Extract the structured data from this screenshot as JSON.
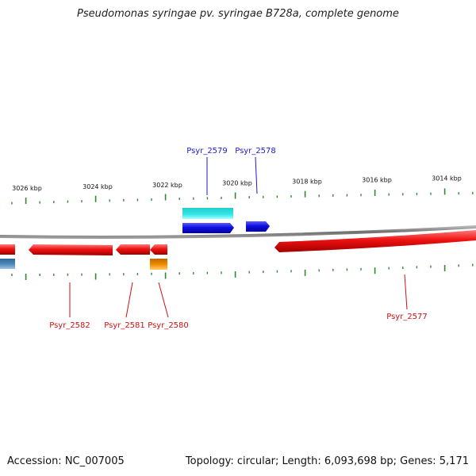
{
  "title": "Pseudomonas syringae pv. syringae B728a, complete genome",
  "footer": {
    "accession": "Accession: NC_007005",
    "topology": "Topology: circular; Length: 6,093,698 bp; Genes: 5,171"
  },
  "colors": {
    "genome_line": "#8a8a8a",
    "minor_tick": "#2e8b2e",
    "plus_label": "#1a1acc",
    "minus_label": "#cc1111",
    "gene_red": "#ee1111",
    "gene_blue": "#1010e0",
    "gene_cyan": "#22dddd",
    "gene_orange": "#ee8800",
    "gene_steel": "#4a86b8"
  },
  "scale_labels": [
    "3026 kbp",
    "3024 kbp",
    "3022 kbp",
    "3020 kbp",
    "3018 kbp",
    "3016 kbp",
    "3014 kbp"
  ],
  "genes_plus": [
    {
      "id": "Psyr_2579",
      "name": "Psyr_2579"
    },
    {
      "id": "Psyr_2578",
      "name": "Psyr_2578"
    }
  ],
  "genes_minus": [
    {
      "id": "Psyr_2582",
      "name": "Psyr_2582"
    },
    {
      "id": "Psyr_2581",
      "name": "Psyr_2581"
    },
    {
      "id": "Psyr_2580",
      "name": "Psyr_2580"
    },
    {
      "id": "Psyr_2577",
      "name": "Psyr_2577"
    }
  ]
}
